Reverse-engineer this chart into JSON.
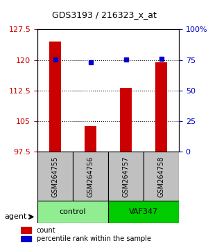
{
  "title": "GDS3193 / 216323_x_at",
  "samples": [
    "GSM264755",
    "GSM264756",
    "GSM264757",
    "GSM264758"
  ],
  "bar_values": [
    124.5,
    103.8,
    113.2,
    119.5
  ],
  "dot_values": [
    120.2,
    119.5,
    120.1,
    120.3
  ],
  "dot_percentiles": [
    75,
    75,
    75,
    75
  ],
  "ylim_left": [
    97.5,
    127.5
  ],
  "ylim_right": [
    0,
    100
  ],
  "yticks_left": [
    97.5,
    105,
    112.5,
    120,
    127.5
  ],
  "ytick_labels_left": [
    "97.5",
    "105",
    "112.5",
    "120",
    "127.5"
  ],
  "ytick_labels_right": [
    "0",
    "25",
    "50",
    "75",
    "100%"
  ],
  "groups": [
    {
      "label": "control",
      "indices": [
        0,
        1
      ],
      "color": "#90EE90"
    },
    {
      "label": "VAF347",
      "indices": [
        2,
        3
      ],
      "color": "#00CC00"
    }
  ],
  "bar_color": "#CC0000",
  "dot_color": "#0000CC",
  "grid_color": "#000000",
  "agent_label": "agent",
  "legend_count_label": "count",
  "legend_percentile_label": "percentile rank within the sample",
  "sample_box_color": "#C0C0C0",
  "background_color": "#FFFFFF"
}
